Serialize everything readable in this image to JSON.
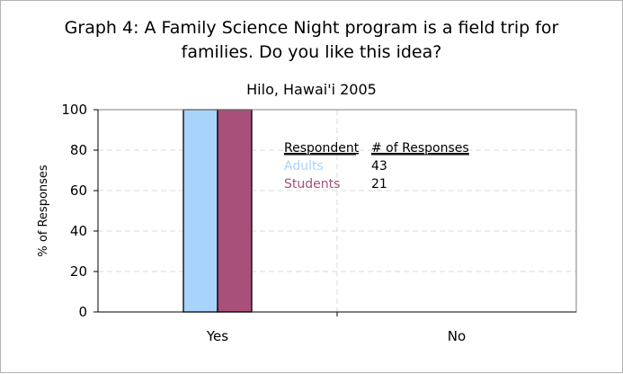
{
  "chart_data": {
    "type": "bar",
    "title_line1": "Graph 4: A Family Science Night program is a field trip for",
    "title_line2": "families. Do you like this idea?",
    "subtitle": "Hilo, Hawai'i 2005",
    "ylabel": "% of Responses",
    "xlabel": "",
    "ylim": [
      0,
      100
    ],
    "yticks": [
      0,
      20,
      40,
      60,
      80,
      100
    ],
    "ytick_labels": [
      "0",
      "20",
      "40",
      "60",
      "80",
      "100"
    ],
    "grid": true,
    "categories": [
      "Yes",
      "No"
    ],
    "series": [
      {
        "name": "Adults",
        "values": [
          100,
          0
        ],
        "color": "#a8d4fb"
      },
      {
        "name": "Students",
        "values": [
          100,
          0
        ],
        "color": "#a8507a"
      }
    ],
    "legend": {
      "placement": "inside-top",
      "header_respondent": "Respondent",
      "header_responses": "# of Responses",
      "entries": [
        {
          "label": "Adults",
          "responses": "43",
          "color": "#a8d4fb"
        },
        {
          "label": "Students",
          "responses": "21",
          "color": "#a8507a"
        }
      ]
    }
  }
}
